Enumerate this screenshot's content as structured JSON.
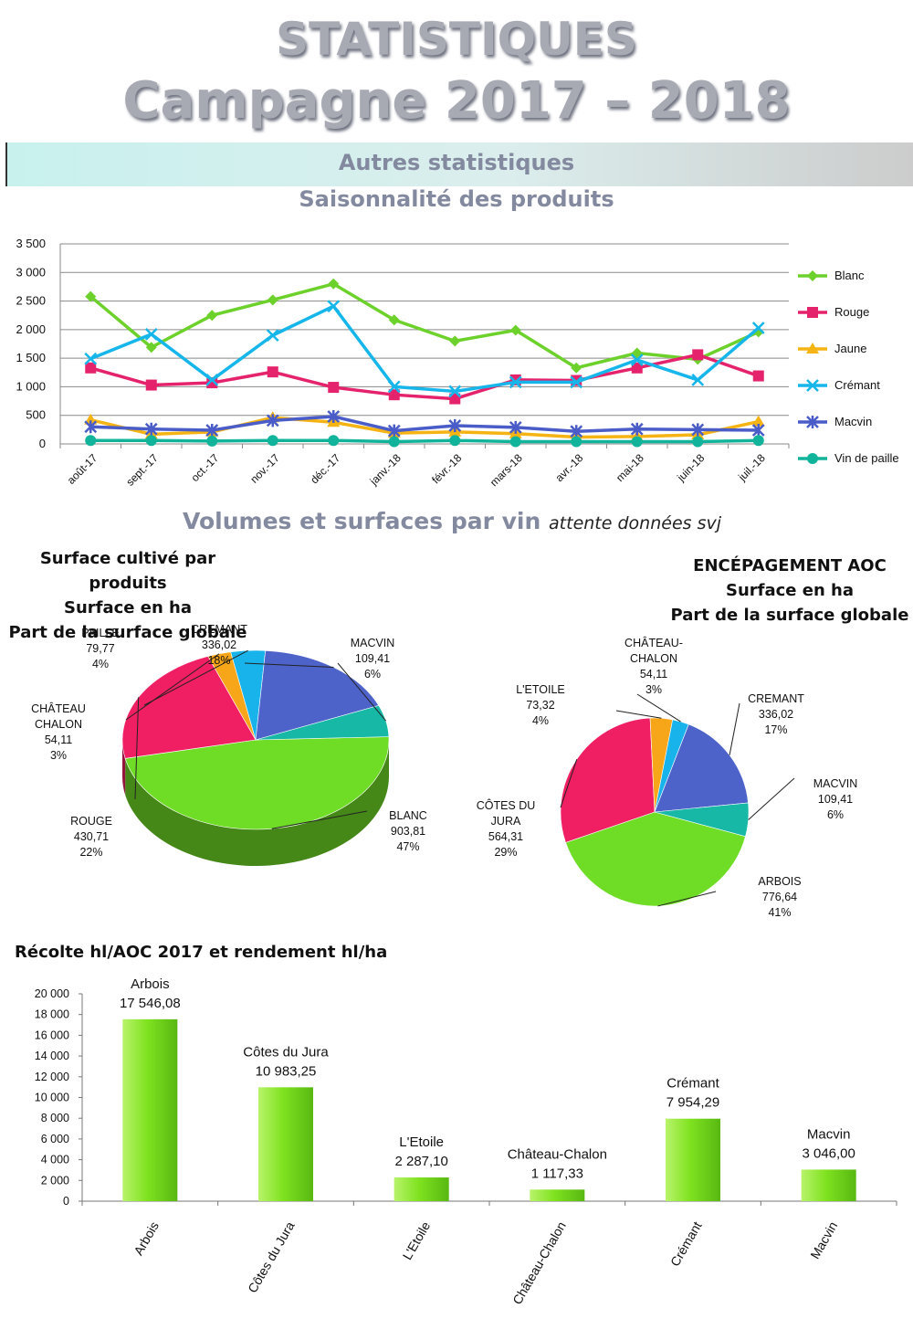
{
  "header": {
    "title": "STATISTIQUES",
    "subtitle": "Campagne 2017 – 2018",
    "band_label": "Autres statistiques",
    "section1": "Saisonnalité des produits",
    "section2": "Volumes et surfaces par vin",
    "section2_note": "attente données svj"
  },
  "chart_data": [
    {
      "type": "line",
      "categories": [
        "août-17",
        "sept.-17",
        "oct.-17",
        "nov.-17",
        "déc.-17",
        "janv.-18",
        "févr.-18",
        "mars-18",
        "avr.-18",
        "mai-18",
        "juin-18",
        "juil.-18"
      ],
      "y_ticks": [
        "0",
        "500",
        "1 000",
        "1 500",
        "2 000",
        "2 500",
        "3 000",
        "3 500"
      ],
      "ylim": [
        0,
        3500
      ],
      "grid": true,
      "legend": "right",
      "series": [
        {
          "name": "Blanc",
          "color": "#6dd12b",
          "marker": "diamond",
          "values": [
            2580,
            1690,
            2250,
            2520,
            2800,
            2170,
            1800,
            1990,
            1330,
            1590,
            1480,
            1960
          ]
        },
        {
          "name": "Rouge",
          "color": "#e5236c",
          "marker": "square",
          "values": [
            1330,
            1030,
            1070,
            1260,
            990,
            860,
            790,
            1120,
            1110,
            1330,
            1560,
            1190
          ]
        },
        {
          "name": "Jaune",
          "color": "#f5b414",
          "marker": "triangle",
          "values": [
            420,
            170,
            210,
            460,
            380,
            190,
            210,
            180,
            120,
            130,
            160,
            390
          ]
        },
        {
          "name": "Crémant",
          "color": "#16b6ea",
          "marker": "x",
          "values": [
            1490,
            1920,
            1120,
            1900,
            2410,
            1000,
            920,
            1080,
            1080,
            1470,
            1120,
            2030
          ]
        },
        {
          "name": "Macvin",
          "color": "#4a5cc7",
          "marker": "star",
          "values": [
            300,
            260,
            240,
            410,
            480,
            230,
            320,
            290,
            220,
            260,
            250,
            240
          ]
        },
        {
          "name": "Vin de paille",
          "color": "#11b49a",
          "marker": "circle",
          "values": [
            60,
            60,
            50,
            60,
            60,
            40,
            60,
            40,
            40,
            40,
            40,
            60
          ]
        }
      ]
    },
    {
      "type": "pie",
      "title_lines": [
        "Surface cultivé par produits",
        "Surface en ha",
        "Part de la surface globale"
      ],
      "slices": [
        {
          "label": "BLANC",
          "value": "903,81",
          "pct": "47%",
          "num": 903.81,
          "color": "#6fdc26"
        },
        {
          "label": "ROUGE",
          "value": "430,71",
          "pct": "22%",
          "num": 430.71,
          "color": "#f01e63"
        },
        {
          "label": "CHÂTEAU CHALON",
          "value": "54,11",
          "pct": "3%",
          "num": 54.11,
          "color": "#f7a61a"
        },
        {
          "label": "PAILLE",
          "value": "79,77",
          "pct": "4%",
          "num": 79.77,
          "color": "#19b3ec"
        },
        {
          "label": "CREMANT",
          "value": "336,02",
          "pct": "18%",
          "num": 336.02,
          "color": "#4e63c9"
        },
        {
          "label": "MACVIN",
          "value": "109,41",
          "pct": "6%",
          "num": 109.41,
          "color": "#17b8a6"
        }
      ]
    },
    {
      "type": "pie",
      "title_lines": [
        "ENCÉPAGEMENT AOC",
        "Surface en ha",
        "Part de la surface globale"
      ],
      "slices": [
        {
          "label": "ARBOIS",
          "value": "776,64",
          "pct": "41%",
          "num": 776.64,
          "color": "#6fdc26"
        },
        {
          "label": "CÔTES DU JURA",
          "value": "564,31",
          "pct": "29%",
          "num": 564.31,
          "color": "#f01e63"
        },
        {
          "label": "L'ETOILE",
          "value": "73,32",
          "pct": "4%",
          "num": 73.32,
          "color": "#f7a61a"
        },
        {
          "label": "CHÂTEAU-CHALON",
          "value": "54,11",
          "pct": "3%",
          "num": 54.11,
          "color": "#19b3ec"
        },
        {
          "label": "CREMANT",
          "value": "336,02",
          "pct": "17%",
          "num": 336.02,
          "color": "#4e63c9"
        },
        {
          "label": "MACVIN",
          "value": "109,41",
          "pct": "6%",
          "num": 109.41,
          "color": "#17b8a6"
        }
      ]
    },
    {
      "type": "bar",
      "title": "Récolte hl/AOC 2017 et rendement hl/ha",
      "categories": [
        "Arbois",
        "Côtes du Jura",
        "L'Etoile",
        "Château-Chalon",
        "Crémant",
        "Macvin"
      ],
      "values": [
        17546.08,
        10983.25,
        2287.1,
        1117.33,
        7954.29,
        3046.0
      ],
      "value_labels": [
        "17 546,08",
        "10 983,25",
        "2 287,10",
        "1 117,33",
        "7 954,29",
        "3 046,00"
      ],
      "y_ticks": [
        "0",
        "2 000",
        "4 000",
        "6 000",
        "8 000",
        "10 000",
        "12 000",
        "14 000",
        "16 000",
        "18 000",
        "20 000"
      ],
      "ylim": [
        0,
        20000
      ],
      "color": "#7fe21f"
    }
  ]
}
